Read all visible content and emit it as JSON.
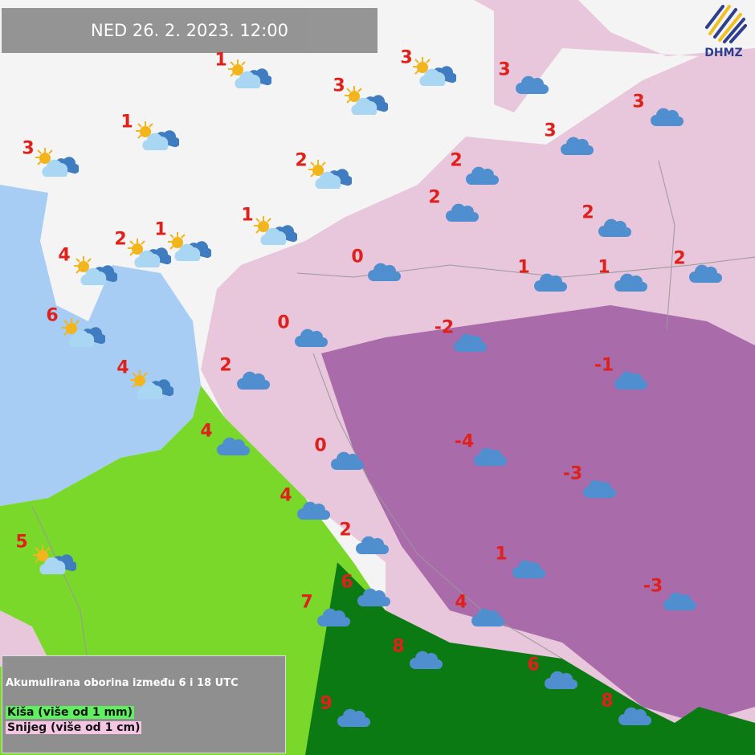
{
  "header": {
    "title": "NED  26. 2. 2023. 12:00"
  },
  "logo": {
    "text": "DHMZ"
  },
  "colors": {
    "land": "#f4f4f4",
    "sea": "#a8cdf5",
    "rain": "#7ad82a",
    "heavy_rain": "#0c7a12",
    "snow": "#e8c6dc",
    "heavy_snow": "#a260a4",
    "temperature": "#e0201a",
    "cloud": "#4f8fd0"
  },
  "stations": [
    {
      "temp": "1",
      "icon": "partly-cloudy-icon"
    },
    {
      "temp": "3",
      "icon": "partly-cloudy-icon"
    },
    {
      "temp": "3",
      "icon": "partly-cloudy-icon"
    },
    {
      "temp": "3",
      "icon": "cloud-icon"
    },
    {
      "temp": "1",
      "icon": "partly-cloudy-icon"
    },
    {
      "temp": "3",
      "icon": "partly-cloudy-icon"
    },
    {
      "temp": "3",
      "icon": "cloud-icon"
    },
    {
      "temp": "3",
      "icon": "cloud-icon"
    },
    {
      "temp": "2",
      "icon": "partly-cloudy-icon"
    },
    {
      "temp": "2",
      "icon": "cloud-icon"
    },
    {
      "temp": "2",
      "icon": "cloud-icon"
    },
    {
      "temp": "2",
      "icon": "cloud-icon"
    },
    {
      "temp": "1",
      "icon": "partly-cloudy-icon"
    },
    {
      "temp": "2",
      "icon": "partly-cloudy-icon"
    },
    {
      "temp": "1",
      "icon": "partly-cloudy-icon"
    },
    {
      "temp": "4",
      "icon": "partly-cloudy-icon"
    },
    {
      "temp": "0",
      "icon": "cloud-icon"
    },
    {
      "temp": "1",
      "icon": "cloud-icon"
    },
    {
      "temp": "1",
      "icon": "cloud-icon"
    },
    {
      "temp": "2",
      "icon": "cloud-icon"
    },
    {
      "temp": "6",
      "icon": "partly-cloudy-icon"
    },
    {
      "temp": "0",
      "icon": "cloud-icon"
    },
    {
      "temp": "-2",
      "icon": "cloud-icon"
    },
    {
      "temp": "4",
      "icon": "partly-cloudy-icon"
    },
    {
      "temp": "2",
      "icon": "cloud-icon"
    },
    {
      "temp": "-1",
      "icon": "cloud-icon"
    },
    {
      "temp": "4",
      "icon": "cloud-icon"
    },
    {
      "temp": "0",
      "icon": "cloud-icon"
    },
    {
      "temp": "-4",
      "icon": "cloud-icon"
    },
    {
      "temp": "-3",
      "icon": "cloud-icon"
    },
    {
      "temp": "4",
      "icon": "cloud-icon"
    },
    {
      "temp": "2",
      "icon": "cloud-icon"
    },
    {
      "temp": "5",
      "icon": "partly-cloudy-icon"
    },
    {
      "temp": "1",
      "icon": "cloud-icon"
    },
    {
      "temp": "-3",
      "icon": "cloud-icon"
    },
    {
      "temp": "6",
      "icon": "cloud-icon"
    },
    {
      "temp": "7",
      "icon": "cloud-icon"
    },
    {
      "temp": "4",
      "icon": "cloud-icon"
    },
    {
      "temp": "8",
      "icon": "cloud-icon"
    },
    {
      "temp": "6",
      "icon": "cloud-icon"
    },
    {
      "temp": "9",
      "icon": "cloud-icon"
    },
    {
      "temp": "8",
      "icon": "cloud-icon"
    }
  ],
  "legend": {
    "heading": "Akumulirana oborina između 6 i 18 UTC",
    "rain": "Kiša (više od 1 mm)",
    "snow": "Snijeg (više od 1 cm)"
  }
}
